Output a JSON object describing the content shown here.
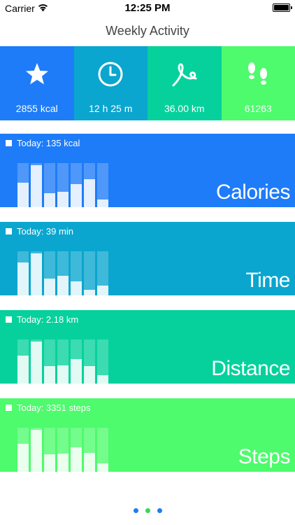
{
  "status_bar": {
    "carrier": "Carrier",
    "time": "12:25 PM"
  },
  "nav": {
    "title": "Weekly Activity"
  },
  "summary": [
    {
      "icon": "star-icon",
      "value": "2855 kcal",
      "color": "#1e7cf8"
    },
    {
      "icon": "clock-icon",
      "value": "12 h 25 m",
      "color": "#0aa6cf"
    },
    {
      "icon": "route-icon",
      "value": "36.00 km",
      "color": "#06d19c"
    },
    {
      "icon": "footprints-icon",
      "value": "61263",
      "color": "#4dfb6c"
    }
  ],
  "cards": [
    {
      "today": "Today: 135 kcal",
      "label": "Calories",
      "color": "#1e7cf8",
      "days": [
        0.55,
        0.96,
        0.32,
        0.35,
        0.52,
        0.63,
        0.17
      ]
    },
    {
      "today": "Today: 39 min",
      "label": "Time",
      "color": "#0aa6cf",
      "days": [
        0.74,
        0.96,
        0.38,
        0.44,
        0.32,
        0.12,
        0.23
      ]
    },
    {
      "today": "Today: 2.18 km",
      "label": "Distance",
      "color": "#06d19c",
      "days": [
        0.63,
        0.96,
        0.4,
        0.42,
        0.56,
        0.39,
        0.19
      ]
    },
    {
      "today": "Today: 3351 steps",
      "label": "Steps",
      "color": "#4dfb6c",
      "days": [
        0.63,
        0.96,
        0.39,
        0.42,
        0.56,
        0.43,
        0.19
      ]
    }
  ],
  "page_dots": [
    {
      "color": "#1e7cf8",
      "active": false
    },
    {
      "color": "#35d85a",
      "active": true
    },
    {
      "color": "#1e7cf8",
      "active": false
    }
  ]
}
